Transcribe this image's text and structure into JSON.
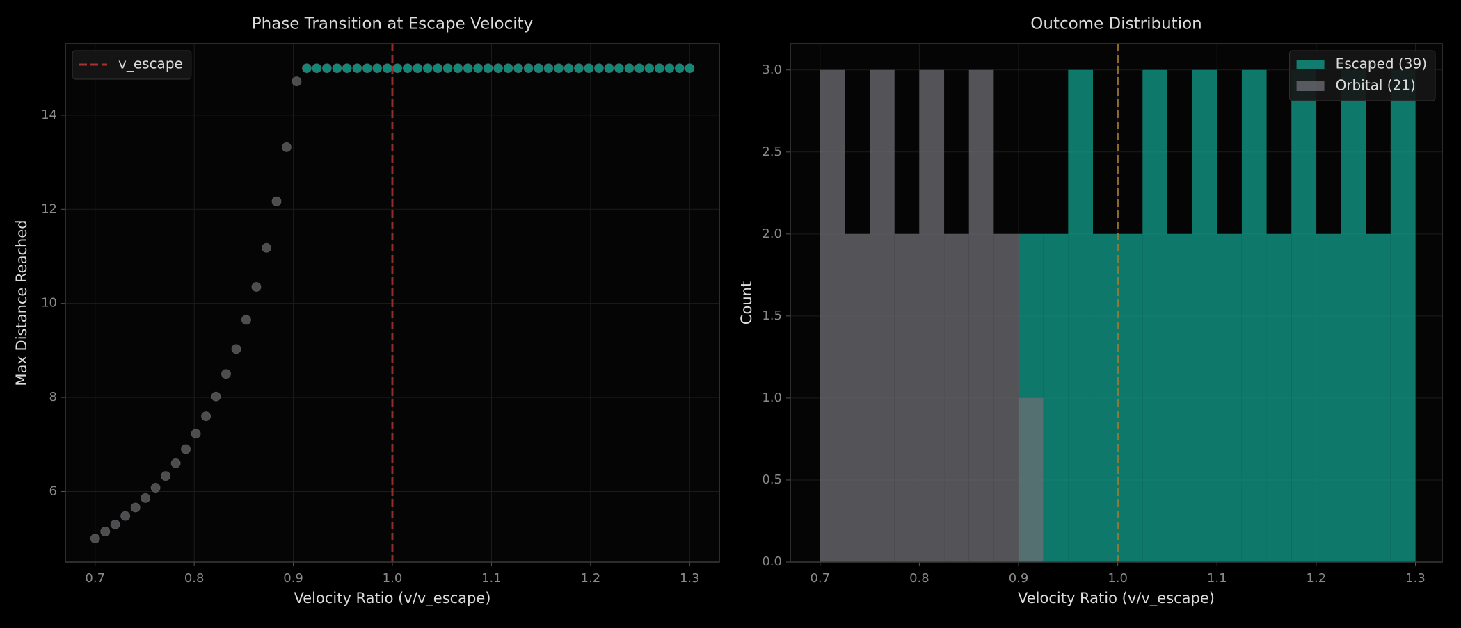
{
  "chart_data": [
    {
      "type": "scatter",
      "title": "Phase Transition at Escape Velocity",
      "x_label": "Velocity Ratio (v/v_escape)",
      "y_label": "Max Distance Reached",
      "xlim": [
        0.67,
        1.33
      ],
      "ylim": [
        4.5,
        15.52
      ],
      "xticks": [
        0.7,
        0.8,
        0.9,
        {
          "value": 1,
          "label": "1.0"
        },
        1.1,
        1.2,
        1.3
      ],
      "yticks": [
        6,
        8,
        10,
        12,
        14
      ],
      "grid": true,
      "legend": "upper left",
      "vlines": [
        {
          "x": 1,
          "label": "v_escape",
          "color": "#a8322d"
        }
      ],
      "series": [
        {
          "color": "#5a5a5e",
          "x": [
            0.7,
            0.7102,
            0.7203,
            0.7305,
            0.7407,
            0.7508,
            0.761,
            0.7712,
            0.7814,
            0.7915,
            0.8017,
            0.8119,
            0.822,
            0.8322,
            0.8424,
            0.8525,
            0.8627,
            0.8729,
            0.8831,
            0.8932,
            0.9034
          ],
          "values": [
            5.0,
            5.15,
            5.3,
            5.48,
            5.66,
            5.86,
            6.08,
            6.33,
            6.6,
            6.9,
            7.23,
            7.6,
            8.02,
            8.5,
            9.03,
            9.65,
            10.35,
            11.18,
            12.17,
            13.32,
            14.72
          ]
        },
        {
          "color": "#12a08c",
          "x": [
            0.9136,
            0.9237,
            0.9339,
            0.9441,
            0.9542,
            0.9644,
            0.9746,
            0.9847,
            0.9949,
            1.0051,
            1.0153,
            1.0254,
            1.0356,
            1.0458,
            1.0559,
            1.0661,
            1.0763,
            1.0864,
            1.0966,
            1.1068,
            1.1169,
            1.1271,
            1.1373,
            1.1475,
            1.1576,
            1.1678,
            1.178,
            1.1881,
            1.1983,
            1.2085,
            1.2186,
            1.2288,
            1.239,
            1.2492,
            1.2593,
            1.2695,
            1.2797,
            1.2898,
            1.3
          ],
          "values": [
            15,
            15,
            15,
            15,
            15,
            15,
            15,
            15,
            15,
            15,
            15,
            15,
            15,
            15,
            15,
            15,
            15,
            15,
            15,
            15,
            15,
            15,
            15,
            15,
            15,
            15,
            15,
            15,
            15,
            15,
            15,
            15,
            15,
            15,
            15,
            15,
            15,
            15,
            15
          ]
        }
      ]
    },
    {
      "type": "histogram",
      "title": "Outcome Distribution",
      "x_label": "Velocity Ratio (v/v_escape)",
      "y_label": "Count",
      "xlim": [
        0.67,
        1.327
      ],
      "ylim": [
        0,
        3.16
      ],
      "xticks": [
        0.7,
        0.8,
        0.9,
        {
          "value": 1,
          "label": "1.0"
        },
        1.1,
        1.2,
        1.3
      ],
      "yticks": [
        {
          "value": 0,
          "label": "0.0"
        },
        0.5,
        {
          "value": 1,
          "label": "1.0"
        },
        1.5,
        {
          "value": 2,
          "label": "2.0"
        },
        2.5,
        {
          "value": 3,
          "label": "3.0"
        }
      ],
      "grid": true,
      "legend": "upper right",
      "vlines": [
        {
          "x": 1,
          "color": "#a07a2e"
        }
      ],
      "series": [
        {
          "name": "Escaped (39)",
          "color": "#12a08c",
          "bins": [
            0.9,
            0.925,
            0.95,
            0.975,
            1.0,
            1.025,
            1.05,
            1.075,
            1.1,
            1.125,
            1.15,
            1.175,
            1.2,
            1.225,
            1.25,
            1.275,
            1.3
          ],
          "values": [
            2,
            2,
            3,
            2,
            2,
            3,
            2,
            3,
            2,
            3,
            2,
            3,
            2,
            3,
            2,
            3
          ]
        },
        {
          "name": "Orbital (21)",
          "color": "#6e6e74",
          "bins": [
            0.7,
            0.725,
            0.75,
            0.775,
            0.8,
            0.825,
            0.85,
            0.875,
            0.9,
            0.925
          ],
          "values": [
            3,
            2,
            3,
            2,
            3,
            2,
            3,
            2,
            1
          ]
        }
      ]
    }
  ]
}
